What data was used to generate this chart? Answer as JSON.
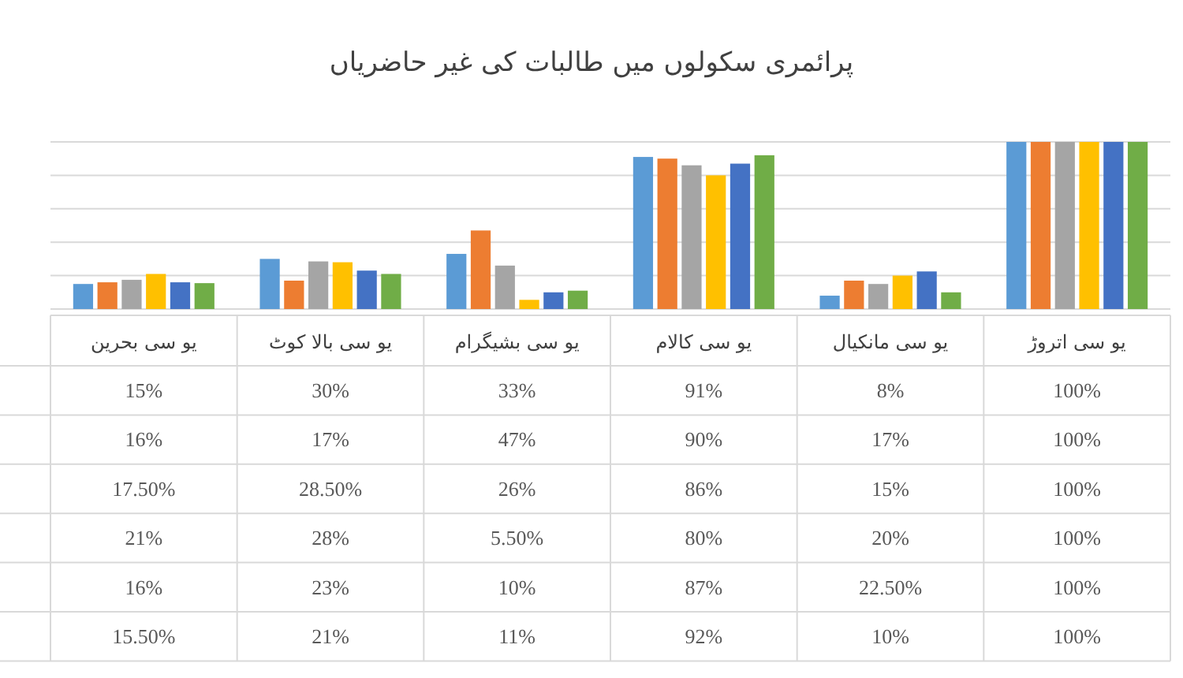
{
  "chart_data": {
    "type": "bar",
    "title": "پرائمری سکولوں میں طالبات کی غیر حاضریاں",
    "categories": [
      "یو سی بحرین",
      "یو سی بالا کوٹ",
      "یو سی بشیگرام",
      "یو سی کالام",
      "یو سی مانکیال",
      "یو سی اتروڑ"
    ],
    "ylim": [
      0,
      100
    ],
    "yticks": [
      {
        "value": 0,
        "label": null
      },
      {
        "value": 20,
        "label": null
      },
      {
        "value": 40,
        "label": null
      },
      {
        "value": 60,
        "label": null
      },
      {
        "value": 80,
        "label": null
      },
      {
        "value": 100,
        "label": null
      }
    ],
    "grid": "y",
    "tick_labels": "x",
    "series": [
      {
        "color": "#5b9bd5",
        "values": [
          15,
          30,
          33,
          91,
          8,
          100
        ],
        "value_labels": [
          "15%",
          "30%",
          "33%",
          "91%",
          "8%",
          "100%"
        ]
      },
      {
        "color": "#ed7d31",
        "values": [
          16,
          17,
          47,
          90,
          17,
          100
        ],
        "value_labels": [
          "16%",
          "17%",
          "47%",
          "90%",
          "17%",
          "100%"
        ]
      },
      {
        "color": "#a5a5a5",
        "values": [
          17.5,
          28.5,
          26,
          86,
          15,
          100
        ],
        "value_labels": [
          "17.50%",
          "28.50%",
          "26%",
          "86%",
          "15%",
          "100%"
        ]
      },
      {
        "color": "#ffc000",
        "values": [
          21,
          28,
          5.5,
          80,
          20,
          100
        ],
        "value_labels": [
          "21%",
          "28%",
          "5.50%",
          "80%",
          "20%",
          "100%"
        ]
      },
      {
        "color": "#4472c4",
        "values": [
          16,
          23,
          10,
          87,
          22.5,
          100
        ],
        "value_labels": [
          "16%",
          "23%",
          "10%",
          "87%",
          "22.50%",
          "100%"
        ]
      },
      {
        "color": "#70ad47",
        "values": [
          15.5,
          21,
          11,
          92,
          10,
          100
        ],
        "value_labels": [
          "15.50%",
          "21%",
          "11%",
          "92%",
          "10%",
          "100%"
        ]
      }
    ]
  }
}
